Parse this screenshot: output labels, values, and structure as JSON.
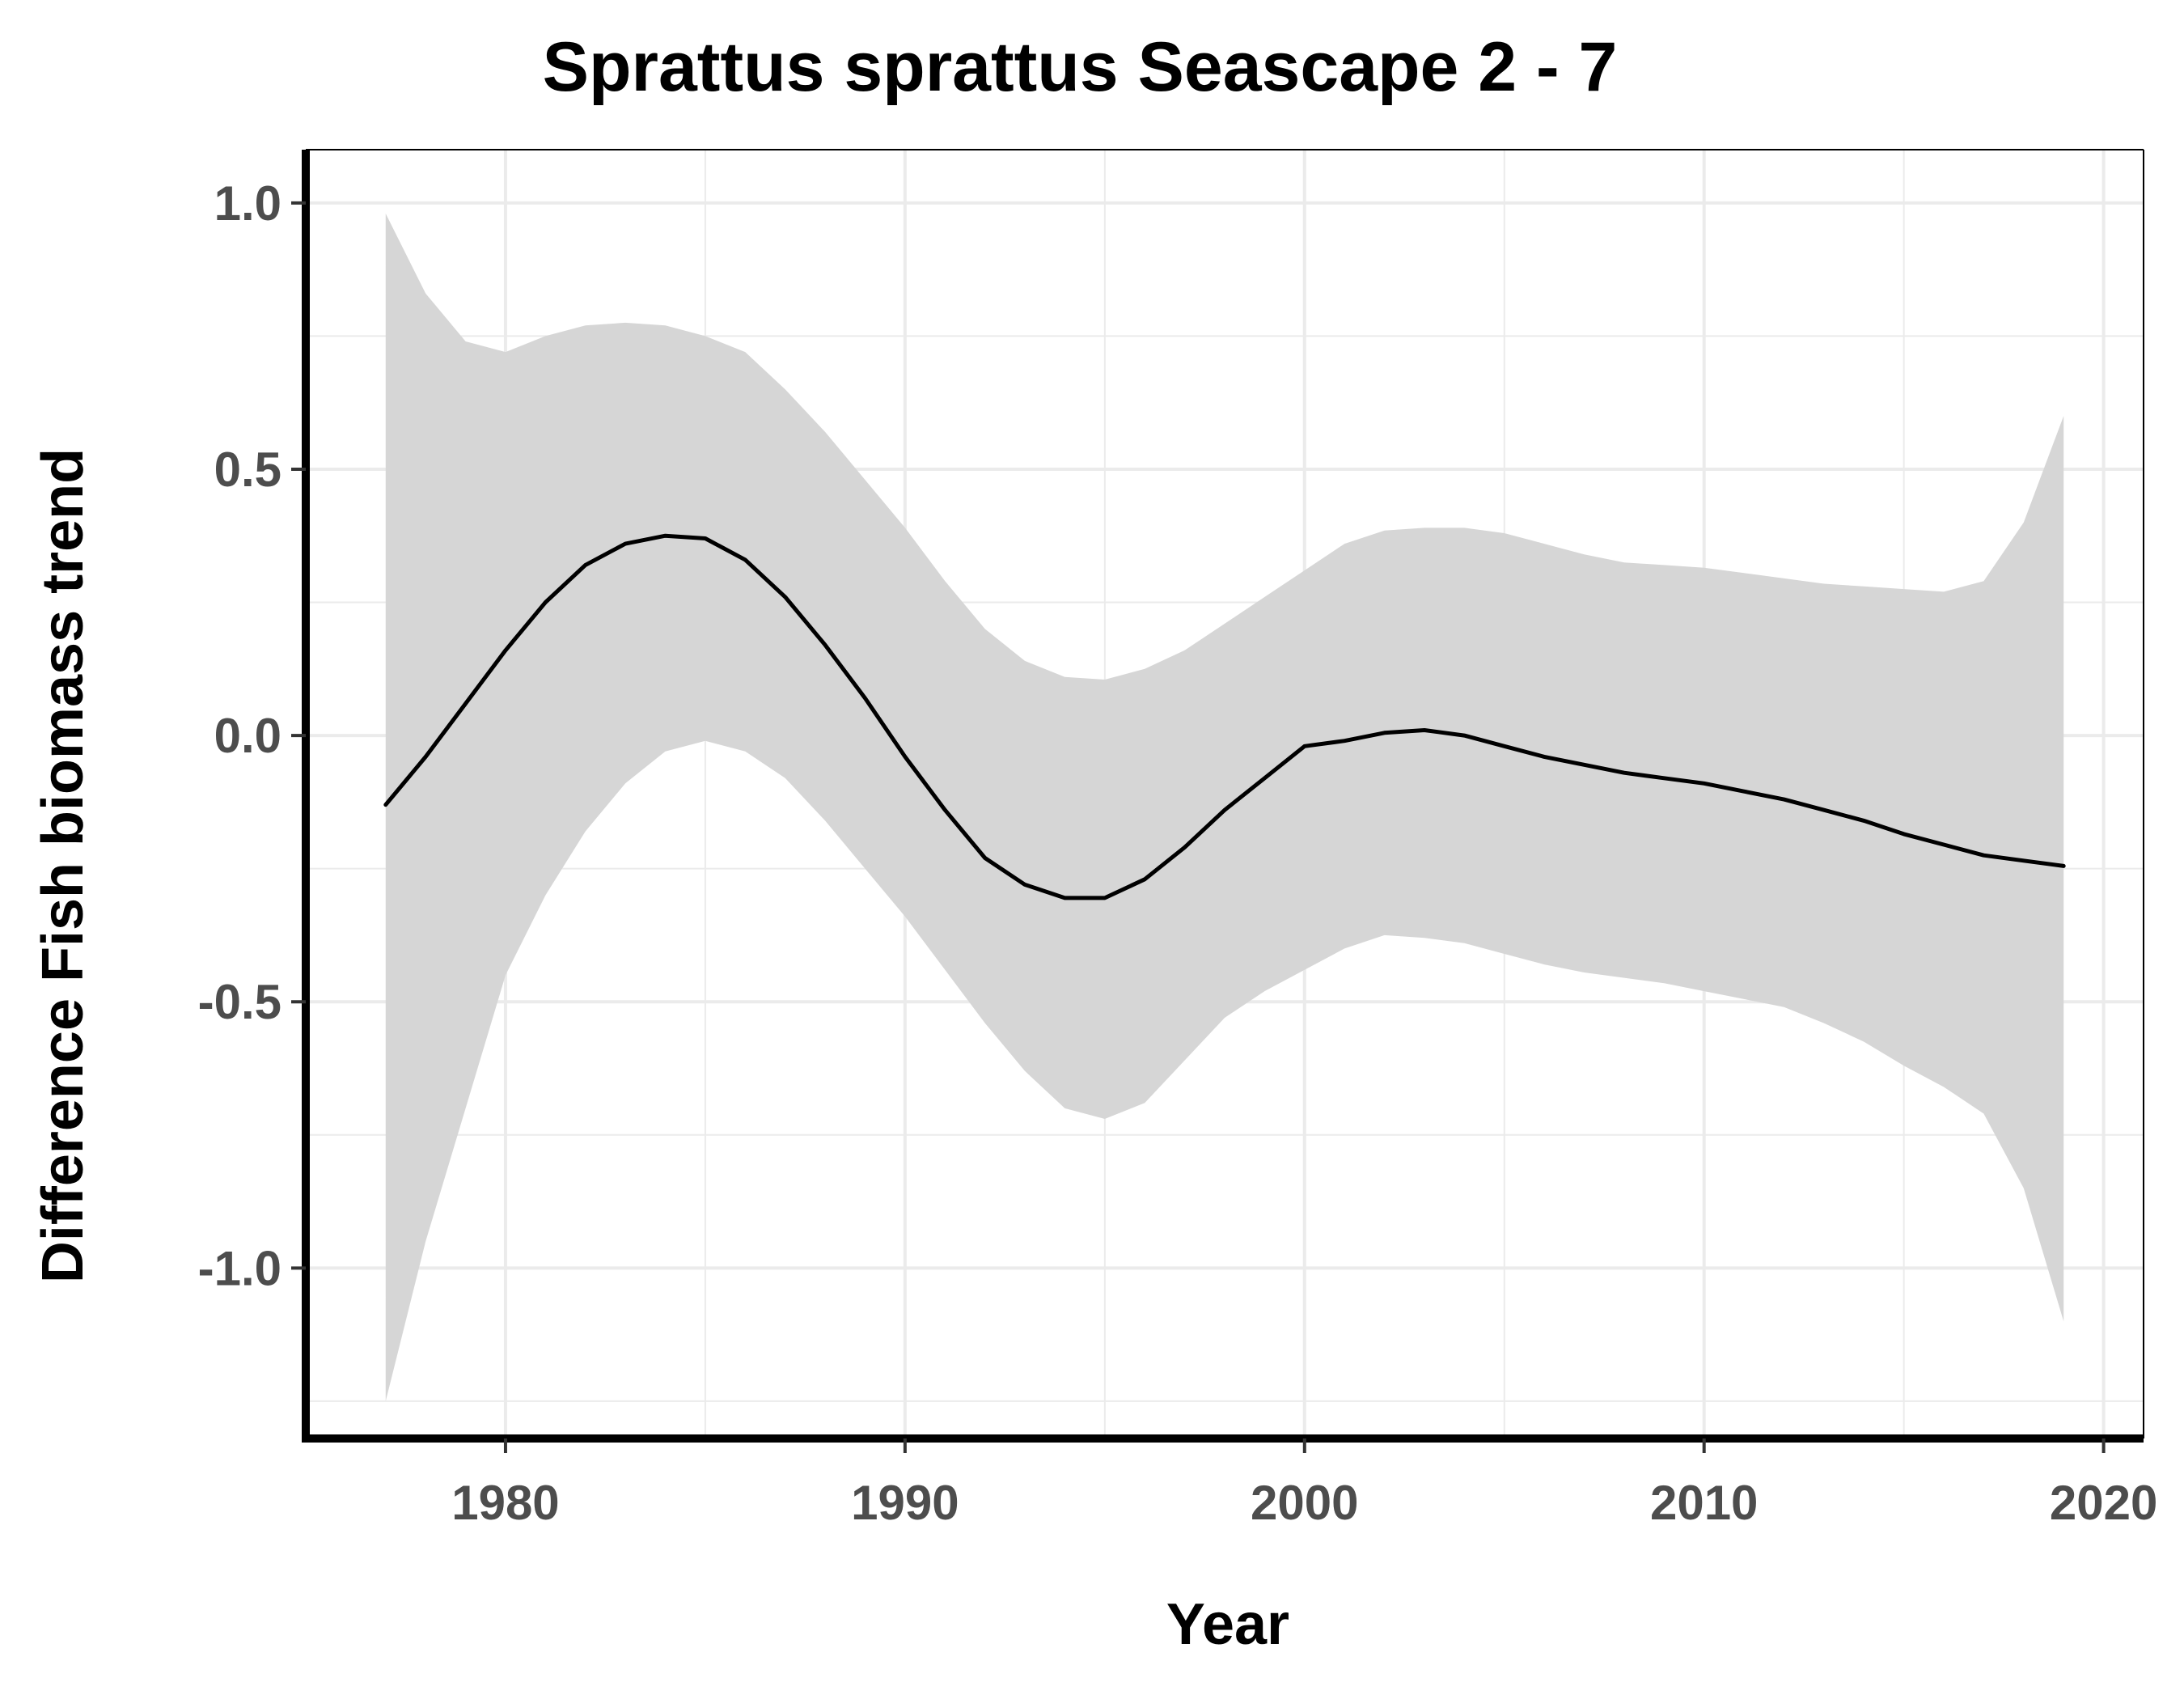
{
  "chart_data": {
    "type": "line",
    "title": "Sprattus sprattus Seascape 2 - 7",
    "xlabel": "Year",
    "ylabel": "Difference Fish biomass trend",
    "xlim": [
      1975,
      2021
    ],
    "ylim": [
      -1.32,
      1.1
    ],
    "x_ticks": [
      1980,
      1990,
      2000,
      2010,
      2020
    ],
    "x_tick_labels": [
      "1980",
      "1990",
      "2000",
      "2010",
      "2020"
    ],
    "y_ticks": [
      1.0,
      0.5,
      0.0,
      -0.5,
      -1.0
    ],
    "y_tick_labels": [
      "1.0",
      "0.5",
      "0.0",
      "-0.5",
      "-1.0"
    ],
    "grid": true,
    "colors": {
      "line": "#000000",
      "ribbon": "#d6d6d6",
      "grid": "#ebebeb",
      "axis": "#000000"
    },
    "series": [
      {
        "x": [
          1977,
          1978,
          1979,
          1980,
          1981,
          1982,
          1983,
          1984,
          1985,
          1986,
          1987,
          1988,
          1989,
          1990,
          1991,
          1992,
          1993,
          1994,
          1995,
          1996,
          1997,
          1998,
          1999,
          2000,
          2001,
          2002,
          2003,
          2004,
          2005,
          2006,
          2007,
          2008,
          2009,
          2010,
          2011,
          2012,
          2013,
          2014,
          2015,
          2016,
          2017,
          2018,
          2019
        ],
        "y": [
          -0.13,
          -0.04,
          0.06,
          0.16,
          0.25,
          0.32,
          0.36,
          0.375,
          0.37,
          0.33,
          0.26,
          0.17,
          0.07,
          -0.04,
          -0.14,
          -0.23,
          -0.28,
          -0.305,
          -0.305,
          -0.27,
          -0.21,
          -0.14,
          -0.08,
          -0.02,
          -0.01,
          0.005,
          0.01,
          0.0,
          -0.02,
          -0.04,
          -0.055,
          -0.07,
          -0.08,
          -0.09,
          -0.105,
          -0.12,
          -0.14,
          -0.16,
          -0.185,
          -0.205,
          -0.225,
          -0.235,
          -0.245
        ],
        "lower": [
          -1.25,
          -0.95,
          -0.7,
          -0.45,
          -0.3,
          -0.18,
          -0.09,
          -0.03,
          -0.01,
          -0.03,
          -0.08,
          -0.16,
          -0.25,
          -0.34,
          -0.44,
          -0.54,
          -0.63,
          -0.7,
          -0.72,
          -0.69,
          -0.61,
          -0.53,
          -0.48,
          -0.44,
          -0.4,
          -0.375,
          -0.38,
          -0.39,
          -0.41,
          -0.43,
          -0.445,
          -0.455,
          -0.465,
          -0.48,
          -0.495,
          -0.51,
          -0.54,
          -0.575,
          -0.62,
          -0.66,
          -0.71,
          -0.85,
          -1.1
        ],
        "upper": [
          0.98,
          0.83,
          0.74,
          0.72,
          0.75,
          0.77,
          0.775,
          0.77,
          0.75,
          0.72,
          0.65,
          0.57,
          0.48,
          0.39,
          0.29,
          0.2,
          0.14,
          0.11,
          0.105,
          0.125,
          0.16,
          0.21,
          0.26,
          0.31,
          0.36,
          0.385,
          0.39,
          0.39,
          0.38,
          0.36,
          0.34,
          0.325,
          0.32,
          0.315,
          0.305,
          0.295,
          0.285,
          0.28,
          0.275,
          0.27,
          0.29,
          0.4,
          0.6
        ]
      }
    ]
  }
}
